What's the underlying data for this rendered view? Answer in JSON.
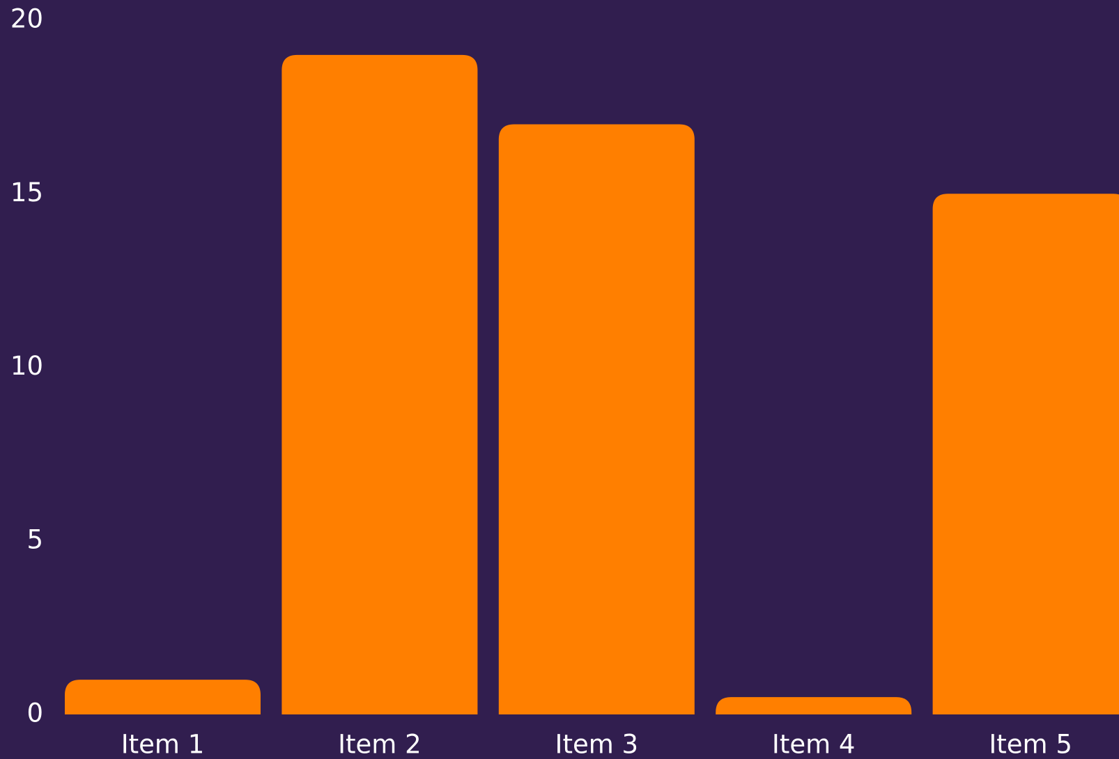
{
  "colors": {
    "background": "#311e4f",
    "bar": "#ff7f00",
    "text": "#ffffff"
  },
  "chart_data": {
    "type": "bar",
    "categories": [
      "Item 1",
      "Item 2",
      "Item 3",
      "Item 4",
      "Item 5"
    ],
    "series": [
      {
        "values": [
          1,
          19,
          17,
          0.5,
          15
        ]
      }
    ],
    "yticks": [
      "0",
      "5",
      "10",
      "15",
      "20"
    ],
    "ylim": [
      0,
      20
    ],
    "grid": false,
    "legend": "none"
  }
}
